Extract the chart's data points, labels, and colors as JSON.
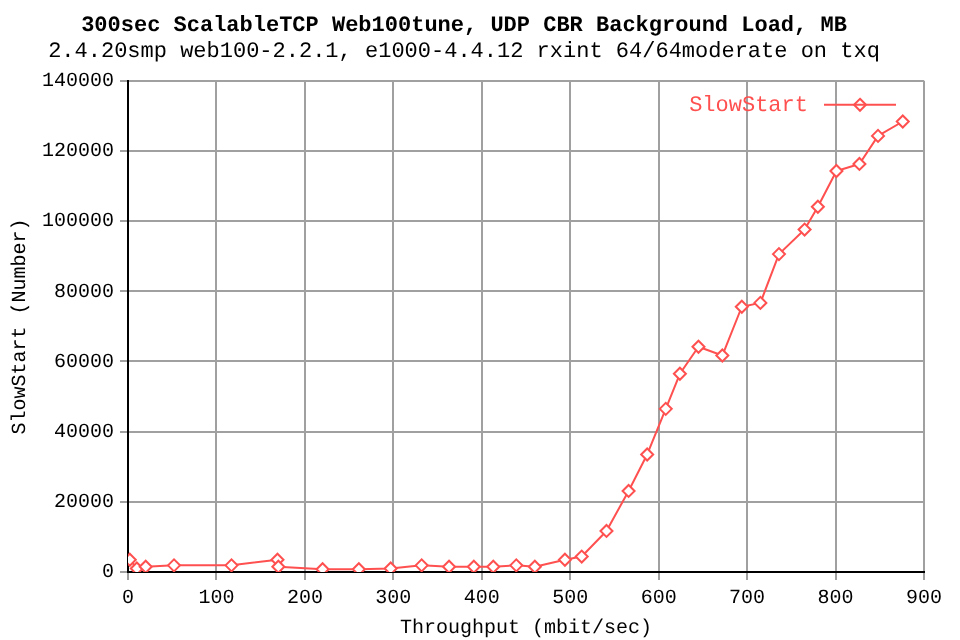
{
  "chart_data": {
    "type": "line",
    "title": "300sec ScalableTCP Web100tune, UDP CBR Background Load, MB",
    "subtitle": "2.4.20smp web100-2.2.1, e1000-4.4.12 rxint 64/64moderate on txq",
    "xlabel": "Throughput (mbit/sec)",
    "ylabel": "SlowStart (Number)",
    "x": [
      2,
      10,
      20,
      52,
      117,
      169,
      170,
      220,
      261,
      297,
      332,
      363,
      391,
      413,
      439,
      460,
      494,
      513,
      541,
      566,
      587,
      608,
      624,
      645,
      672,
      694,
      715,
      736,
      765,
      780,
      801,
      827,
      848,
      876
    ],
    "series": [
      {
        "name": "SlowStart",
        "color": "#ff5050",
        "values": [
          3500,
          1000,
          1500,
          1900,
          1900,
          3500,
          1500,
          800,
          800,
          1000,
          1900,
          1500,
          1500,
          1500,
          1900,
          1500,
          3500,
          4400,
          11700,
          23100,
          33500,
          46500,
          56500,
          64200,
          61700,
          75600,
          76700,
          90600,
          97600,
          104100,
          114300,
          116300,
          124300,
          128400
        ]
      }
    ],
    "xlim": [
      0,
      900
    ],
    "xticks": [
      0,
      100,
      200,
      300,
      400,
      500,
      600,
      700,
      800,
      900
    ],
    "ylim": [
      0,
      140000
    ],
    "yticks": [
      0,
      20000,
      40000,
      60000,
      80000,
      100000,
      120000,
      140000
    ],
    "grid": true,
    "legend": "top right",
    "marker": "diamond",
    "line_style": "solid"
  }
}
